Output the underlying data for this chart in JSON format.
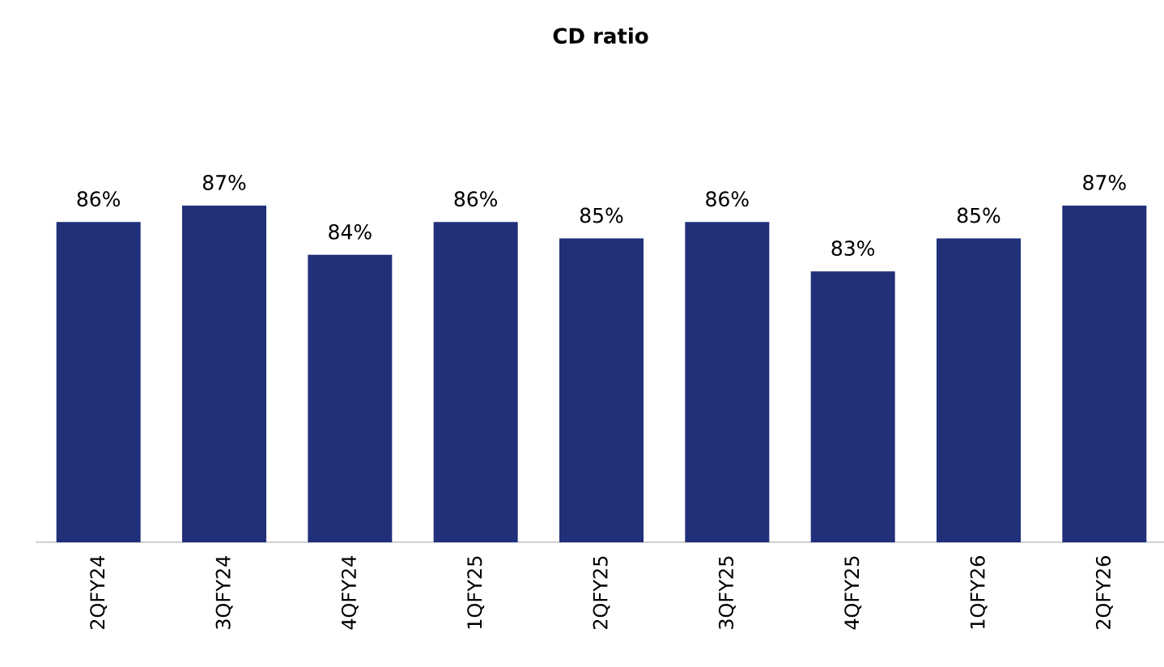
{
  "chart_data": {
    "type": "bar",
    "title": "CD ratio",
    "categories": [
      "2QFY24",
      "3QFY24",
      "4QFY24",
      "1QFY25",
      "2QFY25",
      "3QFY25",
      "4QFY25",
      "1QFY26",
      "2QFY26"
    ],
    "values": [
      86,
      87,
      84,
      86,
      85,
      86,
      83,
      85,
      87
    ],
    "value_labels": [
      "86%",
      "87%",
      "84%",
      "86%",
      "85%",
      "86%",
      "83%",
      "85%",
      "87%"
    ],
    "color": "#22307a",
    "ylim": [
      66.5,
      87
    ],
    "tick_labels": "x"
  }
}
